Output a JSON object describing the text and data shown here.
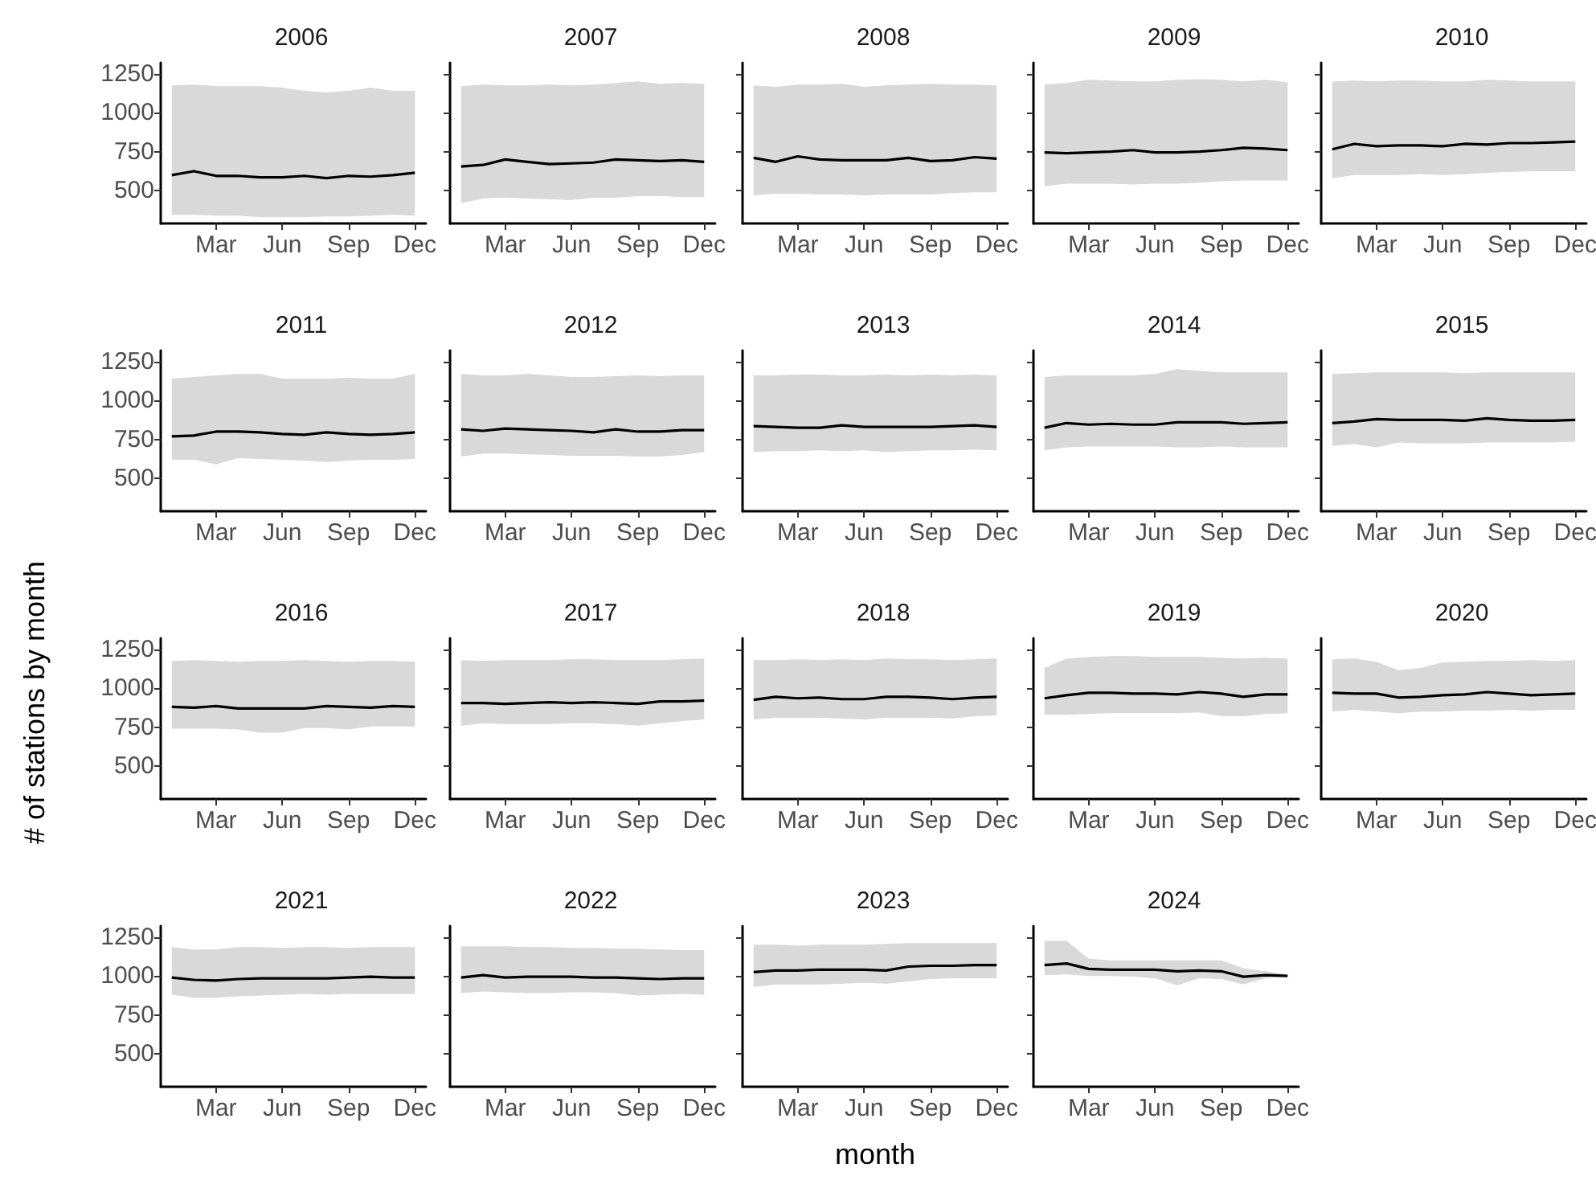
{
  "chart_data": [
    {
      "type": "line",
      "title": "2006",
      "categories": [
        null,
        null,
        "Mar",
        null,
        null,
        "Jun",
        null,
        null,
        "Sep",
        null,
        null,
        "Dec"
      ],
      "ylim": [
        290,
        1320
      ],
      "yticks": [
        500,
        750,
        1000,
        1250
      ],
      "series": [
        {
          "color": "#000000",
          "values": [
            600,
            625,
            595,
            595,
            585,
            585,
            595,
            580,
            595,
            590,
            600,
            615
          ],
          "lower": [
            345,
            345,
            340,
            340,
            330,
            330,
            330,
            335,
            335,
            340,
            345,
            340
          ],
          "upper": [
            1175,
            1180,
            1170,
            1170,
            1170,
            1160,
            1140,
            1130,
            1140,
            1160,
            1140,
            1140
          ]
        }
      ]
    },
    {
      "type": "line",
      "title": "2007",
      "categories": [
        null,
        null,
        "Mar",
        null,
        null,
        "Jun",
        null,
        null,
        "Sep",
        null,
        null,
        "Dec"
      ],
      "ylim": [
        290,
        1320
      ],
      "yticks": [
        500,
        750,
        1000,
        1250
      ],
      "tick_labels": "x",
      "series": [
        {
          "color": "#000000",
          "values": [
            655,
            665,
            700,
            685,
            670,
            675,
            680,
            700,
            695,
            690,
            695,
            685
          ],
          "lower": [
            420,
            450,
            455,
            450,
            445,
            440,
            455,
            455,
            465,
            465,
            460,
            460
          ],
          "upper": [
            1170,
            1180,
            1175,
            1175,
            1180,
            1175,
            1180,
            1190,
            1200,
            1185,
            1190,
            1185
          ]
        }
      ]
    },
    {
      "type": "line",
      "title": "2008",
      "categories": [
        null,
        null,
        "Mar",
        null,
        null,
        "Jun",
        null,
        null,
        "Sep",
        null,
        null,
        "Dec"
      ],
      "ylim": [
        290,
        1320
      ],
      "yticks": [
        500,
        750,
        1000,
        1250
      ],
      "tick_labels": "x",
      "series": [
        {
          "color": "#000000",
          "values": [
            710,
            685,
            720,
            700,
            695,
            695,
            695,
            710,
            690,
            695,
            715,
            705
          ],
          "lower": [
            470,
            480,
            480,
            475,
            475,
            470,
            475,
            475,
            475,
            485,
            490,
            490
          ],
          "upper": [
            1175,
            1165,
            1180,
            1180,
            1185,
            1165,
            1175,
            1180,
            1185,
            1180,
            1180,
            1175
          ]
        }
      ]
    },
    {
      "type": "line",
      "title": "2009",
      "categories": [
        null,
        null,
        "Mar",
        null,
        null,
        "Jun",
        null,
        null,
        "Sep",
        null,
        null,
        "Dec"
      ],
      "ylim": [
        290,
        1320
      ],
      "yticks": [
        500,
        750,
        1000,
        1250
      ],
      "tick_labels": "x",
      "series": [
        {
          "color": "#000000",
          "values": [
            745,
            740,
            745,
            750,
            760,
            745,
            745,
            750,
            760,
            775,
            770,
            760
          ],
          "lower": [
            530,
            545,
            545,
            545,
            540,
            545,
            545,
            550,
            560,
            565,
            565,
            565
          ],
          "upper": [
            1180,
            1190,
            1210,
            1205,
            1200,
            1200,
            1210,
            1215,
            1210,
            1200,
            1210,
            1195
          ]
        }
      ]
    },
    {
      "type": "line",
      "title": "2010",
      "categories": [
        null,
        null,
        "Mar",
        null,
        null,
        "Jun",
        null,
        null,
        "Sep",
        null,
        null,
        "Dec"
      ],
      "ylim": [
        290,
        1320
      ],
      "yticks": [
        500,
        750,
        1000,
        1250
      ],
      "tick_labels": "x",
      "series": [
        {
          "color": "#000000",
          "values": [
            765,
            800,
            785,
            790,
            790,
            785,
            800,
            795,
            805,
            805,
            810,
            815
          ],
          "lower": [
            580,
            600,
            600,
            600,
            605,
            600,
            605,
            615,
            620,
            625,
            625,
            625
          ],
          "upper": [
            1200,
            1205,
            1200,
            1205,
            1205,
            1200,
            1200,
            1210,
            1205,
            1200,
            1200,
            1200
          ]
        }
      ]
    },
    {
      "type": "line",
      "title": "2011",
      "categories": [
        null,
        null,
        "Mar",
        null,
        null,
        "Jun",
        null,
        null,
        "Sep",
        null,
        null,
        "Dec"
      ],
      "ylim": [
        290,
        1320
      ],
      "yticks": [
        500,
        750,
        1000,
        1250
      ],
      "series": [
        {
          "color": "#000000",
          "values": [
            770,
            775,
            800,
            800,
            795,
            785,
            780,
            795,
            785,
            780,
            785,
            795
          ],
          "lower": [
            620,
            620,
            590,
            630,
            625,
            620,
            615,
            605,
            615,
            620,
            620,
            625
          ],
          "upper": [
            1140,
            1150,
            1160,
            1170,
            1170,
            1140,
            1140,
            1140,
            1145,
            1140,
            1140,
            1170
          ]
        }
      ]
    },
    {
      "type": "line",
      "title": "2012",
      "categories": [
        null,
        null,
        "Mar",
        null,
        null,
        "Jun",
        null,
        null,
        "Sep",
        null,
        null,
        "Dec"
      ],
      "ylim": [
        290,
        1320
      ],
      "yticks": [
        500,
        750,
        1000,
        1250
      ],
      "tick_labels": "x",
      "series": [
        {
          "color": "#000000",
          "values": [
            815,
            805,
            820,
            815,
            810,
            805,
            795,
            815,
            800,
            800,
            810,
            810
          ],
          "lower": [
            640,
            660,
            660,
            655,
            650,
            645,
            645,
            645,
            640,
            640,
            650,
            670
          ],
          "upper": [
            1170,
            1160,
            1160,
            1170,
            1160,
            1150,
            1150,
            1155,
            1160,
            1155,
            1160,
            1160
          ]
        }
      ]
    },
    {
      "type": "line",
      "title": "2013",
      "categories": [
        null,
        null,
        "Mar",
        null,
        null,
        "Jun",
        null,
        null,
        "Sep",
        null,
        null,
        "Dec"
      ],
      "ylim": [
        290,
        1320
      ],
      "yticks": [
        500,
        750,
        1000,
        1250
      ],
      "tick_labels": "x",
      "series": [
        {
          "color": "#000000",
          "values": [
            835,
            830,
            825,
            825,
            840,
            830,
            830,
            830,
            830,
            835,
            840,
            830
          ],
          "lower": [
            670,
            675,
            675,
            680,
            675,
            680,
            670,
            675,
            680,
            680,
            685,
            680
          ],
          "upper": [
            1160,
            1160,
            1165,
            1165,
            1160,
            1160,
            1165,
            1160,
            1165,
            1160,
            1165,
            1160
          ]
        }
      ]
    },
    {
      "type": "line",
      "title": "2014",
      "categories": [
        null,
        null,
        "Mar",
        null,
        null,
        "Jun",
        null,
        null,
        "Sep",
        null,
        null,
        "Dec"
      ],
      "ylim": [
        290,
        1320
      ],
      "yticks": [
        500,
        750,
        1000,
        1250
      ],
      "tick_labels": "x",
      "series": [
        {
          "color": "#000000",
          "values": [
            825,
            855,
            845,
            850,
            845,
            845,
            860,
            860,
            860,
            850,
            855,
            860
          ],
          "lower": [
            680,
            700,
            705,
            705,
            705,
            705,
            700,
            700,
            705,
            700,
            700,
            700
          ],
          "upper": [
            1150,
            1160,
            1160,
            1160,
            1160,
            1170,
            1200,
            1190,
            1180,
            1180,
            1180,
            1180
          ]
        }
      ]
    },
    {
      "type": "line",
      "title": "2015",
      "categories": [
        null,
        null,
        "Mar",
        null,
        null,
        "Jun",
        null,
        null,
        "Sep",
        null,
        null,
        "Dec"
      ],
      "ylim": [
        290,
        1320
      ],
      "yticks": [
        500,
        750,
        1000,
        1250
      ],
      "tick_labels": "x",
      "series": [
        {
          "color": "#000000",
          "values": [
            855,
            865,
            880,
            875,
            875,
            875,
            870,
            885,
            875,
            870,
            870,
            875
          ],
          "lower": [
            710,
            720,
            700,
            730,
            725,
            725,
            725,
            730,
            730,
            730,
            730,
            735
          ],
          "upper": [
            1170,
            1175,
            1180,
            1180,
            1180,
            1180,
            1175,
            1180,
            1180,
            1180,
            1180,
            1180
          ]
        }
      ]
    },
    {
      "type": "line",
      "title": "2016",
      "ylabel": "# of stations by month",
      "categories": [
        null,
        null,
        "Mar",
        null,
        null,
        "Jun",
        null,
        null,
        "Sep",
        null,
        null,
        "Dec"
      ],
      "ylim": [
        290,
        1320
      ],
      "yticks": [
        500,
        750,
        1000,
        1250
      ],
      "series": [
        {
          "color": "#000000",
          "values": [
            880,
            875,
            885,
            870,
            870,
            870,
            870,
            885,
            880,
            875,
            885,
            880
          ],
          "lower": [
            740,
            740,
            740,
            735,
            715,
            715,
            745,
            745,
            735,
            755,
            755,
            755
          ],
          "upper": [
            1175,
            1180,
            1175,
            1170,
            1175,
            1175,
            1180,
            1175,
            1170,
            1175,
            1175,
            1170
          ]
        }
      ]
    },
    {
      "type": "line",
      "title": "2017",
      "categories": [
        null,
        null,
        "Mar",
        null,
        null,
        "Jun",
        null,
        null,
        "Sep",
        null,
        null,
        "Dec"
      ],
      "ylim": [
        290,
        1320
      ],
      "yticks": [
        500,
        750,
        1000,
        1250
      ],
      "tick_labels": "x",
      "series": [
        {
          "color": "#000000",
          "values": [
            905,
            905,
            900,
            905,
            910,
            905,
            910,
            905,
            900,
            915,
            915,
            920
          ],
          "lower": [
            760,
            775,
            770,
            770,
            770,
            775,
            775,
            770,
            760,
            775,
            790,
            800
          ],
          "upper": [
            1180,
            1175,
            1180,
            1180,
            1180,
            1185,
            1185,
            1180,
            1180,
            1180,
            1185,
            1190
          ]
        }
      ]
    },
    {
      "type": "line",
      "title": "2018",
      "categories": [
        null,
        null,
        "Mar",
        null,
        null,
        "Jun",
        null,
        null,
        "Sep",
        null,
        null,
        "Dec"
      ],
      "ylim": [
        290,
        1320
      ],
      "yticks": [
        500,
        750,
        1000,
        1250
      ],
      "tick_labels": "x",
      "series": [
        {
          "color": "#000000",
          "values": [
            925,
            945,
            935,
            940,
            930,
            930,
            945,
            945,
            940,
            930,
            940,
            945
          ],
          "lower": [
            800,
            810,
            810,
            810,
            805,
            800,
            810,
            810,
            810,
            805,
            820,
            825
          ],
          "upper": [
            1180,
            1180,
            1185,
            1180,
            1185,
            1180,
            1190,
            1185,
            1185,
            1180,
            1185,
            1190
          ]
        }
      ]
    },
    {
      "type": "line",
      "title": "2019",
      "categories": [
        null,
        null,
        "Mar",
        null,
        null,
        "Jun",
        null,
        null,
        "Sep",
        null,
        null,
        "Dec"
      ],
      "ylim": [
        290,
        1320
      ],
      "yticks": [
        500,
        750,
        1000,
        1250
      ],
      "tick_labels": "x",
      "series": [
        {
          "color": "#000000",
          "values": [
            935,
            955,
            970,
            970,
            965,
            965,
            960,
            975,
            965,
            945,
            960,
            960
          ],
          "lower": [
            830,
            830,
            835,
            840,
            840,
            840,
            840,
            845,
            820,
            820,
            835,
            840
          ],
          "upper": [
            1130,
            1190,
            1200,
            1205,
            1205,
            1200,
            1200,
            1200,
            1195,
            1190,
            1195,
            1190
          ]
        }
      ]
    },
    {
      "type": "line",
      "title": "2020",
      "categories": [
        null,
        null,
        "Mar",
        null,
        null,
        "Jun",
        null,
        null,
        "Sep",
        null,
        null,
        "Dec"
      ],
      "ylim": [
        290,
        1320
      ],
      "yticks": [
        500,
        750,
        1000,
        1250
      ],
      "tick_labels": "x",
      "series": [
        {
          "color": "#000000",
          "values": [
            970,
            965,
            965,
            940,
            945,
            955,
            960,
            975,
            965,
            955,
            960,
            965
          ],
          "lower": [
            850,
            860,
            850,
            840,
            850,
            850,
            855,
            855,
            860,
            855,
            860,
            860
          ],
          "upper": [
            1185,
            1190,
            1170,
            1115,
            1130,
            1165,
            1170,
            1175,
            1175,
            1180,
            1175,
            1180
          ]
        }
      ]
    },
    {
      "type": "line",
      "title": "2021",
      "categories": [
        null,
        null,
        "Mar",
        null,
        null,
        "Jun",
        null,
        null,
        "Sep",
        null,
        null,
        "Dec"
      ],
      "ylim": [
        290,
        1320
      ],
      "yticks": [
        500,
        750,
        1000,
        1250
      ],
      "series": [
        {
          "color": "#000000",
          "values": [
            990,
            975,
            970,
            980,
            985,
            985,
            985,
            985,
            990,
            995,
            990,
            990
          ],
          "lower": [
            880,
            860,
            860,
            870,
            875,
            880,
            885,
            880,
            885,
            885,
            885,
            885
          ],
          "upper": [
            1185,
            1170,
            1170,
            1185,
            1185,
            1180,
            1185,
            1185,
            1180,
            1185,
            1185,
            1185
          ]
        }
      ]
    },
    {
      "type": "line",
      "title": "2022",
      "categories": [
        null,
        null,
        "Mar",
        null,
        null,
        "Jun",
        null,
        null,
        "Sep",
        null,
        null,
        "Dec"
      ],
      "ylim": [
        290,
        1320
      ],
      "yticks": [
        500,
        750,
        1000,
        1250
      ],
      "tick_labels": "x",
      "series": [
        {
          "color": "#000000",
          "values": [
            990,
            1005,
            990,
            995,
            995,
            995,
            990,
            990,
            985,
            980,
            985,
            985
          ],
          "lower": [
            890,
            900,
            895,
            890,
            890,
            895,
            895,
            890,
            875,
            880,
            885,
            880
          ],
          "upper": [
            1190,
            1190,
            1190,
            1185,
            1185,
            1180,
            1180,
            1175,
            1175,
            1170,
            1165,
            1165
          ]
        }
      ]
    },
    {
      "type": "line",
      "title": "2023",
      "xlabel": "month",
      "categories": [
        null,
        null,
        "Mar",
        null,
        null,
        "Jun",
        null,
        null,
        "Sep",
        null,
        null,
        "Dec"
      ],
      "ylim": [
        290,
        1320
      ],
      "yticks": [
        500,
        750,
        1000,
        1250
      ],
      "tick_labels": "x",
      "series": [
        {
          "color": "#000000",
          "values": [
            1025,
            1035,
            1035,
            1040,
            1040,
            1040,
            1035,
            1060,
            1065,
            1065,
            1070,
            1070
          ],
          "lower": [
            930,
            945,
            945,
            945,
            950,
            955,
            950,
            965,
            980,
            985,
            985,
            985
          ],
          "upper": [
            1200,
            1200,
            1195,
            1200,
            1200,
            1200,
            1205,
            1210,
            1210,
            1210,
            1210,
            1210
          ]
        }
      ]
    },
    {
      "type": "line",
      "title": "2024",
      "categories": [
        null,
        null,
        "Mar",
        null,
        null,
        "Jun",
        null,
        null,
        "Sep",
        null,
        null,
        "Dec"
      ],
      "ylim": [
        290,
        1320
      ],
      "yticks": [
        500,
        750,
        1000,
        1250
      ],
      "tick_labels": "x",
      "series": [
        {
          "color": "#000000",
          "values": [
            1070,
            1080,
            1045,
            1040,
            1040,
            1040,
            1030,
            1035,
            1030,
            995,
            1005,
            1000
          ],
          "lower": [
            1005,
            1010,
            1000,
            1000,
            995,
            985,
            940,
            985,
            980,
            945,
            985,
            995
          ],
          "upper": [
            1225,
            1225,
            1110,
            1100,
            1100,
            1100,
            1100,
            1100,
            1100,
            1050,
            1030,
            1010
          ]
        }
      ]
    }
  ]
}
